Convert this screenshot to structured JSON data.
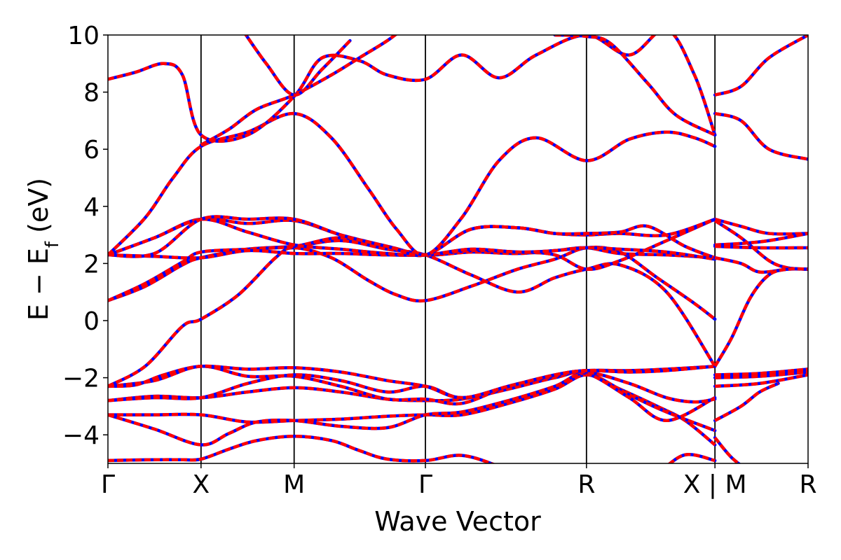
{
  "chart_data": {
    "type": "line",
    "title": "",
    "xlabel": "Wave Vector",
    "ylabel_main": "E − E",
    "ylabel_sub": "f",
    "ylabel_unit": " (eV)",
    "ylim": [
      -5,
      10
    ],
    "yticks": [
      -4,
      -2,
      0,
      2,
      4,
      6,
      8,
      10
    ],
    "ytick_labels": [
      "−4",
      "−2",
      "0",
      "2",
      "4",
      "6",
      "8",
      "10"
    ],
    "xlim": [
      0,
      7.52
    ],
    "kpath": [
      {
        "label": "Γ",
        "x": 0.0
      },
      {
        "label": "X",
        "x": 1.0
      },
      {
        "label": "M",
        "x": 2.0
      },
      {
        "label": "Γ",
        "x": 3.41
      },
      {
        "label": "R",
        "x": 5.14
      },
      {
        "label": "X | M",
        "x": 6.52
      },
      {
        "label": "R",
        "x": 7.52
      }
    ],
    "grid": false,
    "legend": "none",
    "colors": {
      "band_solid": "#0000ff",
      "band_dashed": "#ff0000",
      "vline": "#000000"
    },
    "bands": [
      {
        "x": [
          0.0,
          0.3,
          0.6,
          0.8,
          1.0,
          1.3,
          1.6,
          2.0,
          2.4,
          2.7,
          3.0,
          3.41,
          3.8,
          4.2,
          4.6,
          5.14,
          5.5,
          5.9,
          6.2,
          6.52
        ],
        "y": [
          -4.9,
          -4.88,
          -4.87,
          -4.87,
          -4.85,
          -4.5,
          -4.2,
          -4.05,
          -4.2,
          -4.55,
          -4.85,
          -4.9,
          -4.72,
          -5.1,
          -5.6,
          -6.2,
          -5.8,
          -5.3,
          -4.7,
          -4.9
        ]
      },
      {
        "x": [
          0.0,
          0.5,
          1.0,
          1.5,
          2.0,
          2.5,
          3.0,
          3.41,
          3.8,
          4.3,
          4.8,
          5.14,
          5.5,
          5.9,
          6.2,
          6.52
        ],
        "y": [
          -3.3,
          -3.3,
          -3.3,
          -3.55,
          -3.5,
          -3.45,
          -3.35,
          -3.3,
          -3.3,
          -2.9,
          -2.4,
          -1.9,
          -2.4,
          -3.0,
          -3.5,
          -4.35
        ]
      },
      {
        "x": [
          0.0,
          0.5,
          1.0,
          1.3,
          1.6,
          2.0,
          2.5,
          3.0,
          3.41,
          3.8,
          4.3,
          4.8,
          5.14,
          5.6,
          6.0,
          6.52
        ],
        "y": [
          -3.3,
          -3.8,
          -4.35,
          -3.95,
          -3.55,
          -3.5,
          -3.7,
          -3.75,
          -3.3,
          -3.2,
          -2.8,
          -2.3,
          -1.85,
          -2.6,
          -3.2,
          -3.85
        ]
      },
      {
        "x": [
          0.0,
          0.5,
          1.0,
          1.5,
          2.0,
          2.5,
          3.0,
          3.41,
          3.8,
          4.3,
          4.8,
          5.14,
          5.6,
          6.0,
          6.52
        ],
        "y": [
          -2.8,
          -2.65,
          -2.7,
          -2.5,
          -2.35,
          -2.5,
          -2.75,
          -2.8,
          -2.75,
          -2.4,
          -2.0,
          -1.85,
          -2.7,
          -3.5,
          -2.7
        ]
      },
      {
        "x": [
          0.0,
          0.5,
          1.0,
          1.5,
          2.0,
          2.5,
          3.0,
          3.41,
          3.8,
          4.3,
          4.8,
          5.14,
          5.6,
          6.0,
          6.3,
          6.52
        ],
        "y": [
          -2.3,
          -2.1,
          -1.6,
          -1.95,
          -1.95,
          -2.3,
          -2.75,
          -2.75,
          -2.9,
          -2.3,
          -1.95,
          -1.8,
          -2.2,
          -2.7,
          -2.85,
          -2.75
        ]
      },
      {
        "x": [
          0.0,
          0.5,
          1.0,
          1.5,
          2.0,
          2.5,
          3.0,
          3.41,
          3.8,
          4.3,
          4.8,
          5.14,
          5.6,
          6.0,
          6.52
        ],
        "y": [
          -2.8,
          -2.7,
          -2.7,
          -2.2,
          -1.9,
          -2.1,
          -2.5,
          -2.3,
          -2.7,
          -2.3,
          -1.9,
          -1.75,
          -1.75,
          -1.7,
          -1.6
        ]
      },
      {
        "x": [
          0.0,
          0.3,
          0.6,
          1.0,
          1.5,
          2.0,
          2.5,
          3.0,
          3.41,
          3.8,
          4.3,
          4.8,
          5.14,
          5.6,
          6.0,
          6.52
        ],
        "y": [
          -2.3,
          -2.25,
          -1.9,
          -1.6,
          -1.7,
          -1.65,
          -1.8,
          -2.1,
          -2.3,
          -2.7,
          -2.3,
          -1.9,
          -1.75,
          -1.8,
          -1.75,
          -1.6
        ]
      },
      {
        "x": [
          0.0,
          0.4,
          0.8,
          1.0,
          1.4,
          1.8,
          2.0,
          2.4,
          2.8,
          3.1,
          3.41,
          3.9,
          4.4,
          4.8,
          5.14,
          5.5,
          5.9,
          6.3,
          6.52
        ],
        "y": [
          -2.3,
          -1.6,
          -0.2,
          0.05,
          0.9,
          2.2,
          2.55,
          2.2,
          1.4,
          0.9,
          0.7,
          1.2,
          1.8,
          2.15,
          2.55,
          2.4,
          1.5,
          0.6,
          0.05
        ]
      },
      {
        "x": [
          0.0,
          0.4,
          0.8,
          1.0,
          1.5,
          2.0,
          2.5,
          3.0,
          3.41,
          3.9,
          4.4,
          4.8,
          5.14,
          5.5,
          6.0,
          6.52
        ],
        "y": [
          0.7,
          1.2,
          1.95,
          2.2,
          2.5,
          2.6,
          2.8,
          2.5,
          2.3,
          1.6,
          1.0,
          1.5,
          1.8,
          1.95,
          1.0,
          -1.6
        ]
      },
      {
        "x": [
          0.0,
          0.4,
          0.8,
          1.0,
          1.5,
          2.0,
          2.5,
          3.0,
          3.41,
          3.9,
          4.4,
          4.8,
          5.14,
          5.5,
          6.0,
          6.52
        ],
        "y": [
          0.7,
          1.3,
          2.05,
          2.4,
          2.5,
          2.6,
          2.9,
          2.6,
          2.3,
          2.4,
          2.35,
          2.45,
          2.55,
          2.35,
          2.3,
          2.2
        ]
      },
      {
        "x": [
          0.0,
          0.5,
          1.0,
          1.5,
          2.0,
          2.5,
          3.0,
          3.41,
          3.9,
          4.4,
          4.8,
          5.14,
          5.5,
          6.0,
          6.52
        ],
        "y": [
          2.3,
          2.25,
          2.2,
          2.45,
          2.35,
          2.35,
          2.3,
          2.3,
          2.45,
          2.4,
          2.3,
          1.8,
          2.1,
          2.8,
          3.55
        ]
      },
      {
        "x": [
          0.0,
          0.5,
          1.0,
          1.5,
          2.0,
          2.5,
          3.0,
          3.41,
          3.9,
          4.4,
          4.8,
          5.14,
          5.5,
          6.0,
          6.52
        ],
        "y": [
          2.3,
          2.9,
          3.55,
          3.1,
          2.65,
          2.5,
          2.35,
          2.3,
          2.5,
          2.4,
          2.45,
          2.55,
          2.5,
          2.4,
          2.15
        ]
      },
      {
        "x": [
          0.0,
          0.5,
          1.0,
          1.5,
          2.0,
          2.5,
          3.0,
          3.41,
          3.9,
          4.4,
          4.8,
          5.14,
          5.5,
          6.0,
          6.52
        ],
        "y": [
          2.3,
          2.9,
          3.55,
          3.4,
          3.5,
          3.0,
          2.6,
          2.3,
          3.2,
          3.25,
          3.05,
          3.0,
          3.05,
          3.0,
          3.55
        ]
      },
      {
        "x": [
          0.0,
          0.5,
          1.0,
          1.5,
          2.0,
          2.5,
          3.0,
          3.41,
          3.9,
          4.4,
          4.8,
          5.14,
          5.5,
          5.8,
          6.2,
          6.52
        ],
        "y": [
          2.3,
          2.35,
          3.55,
          3.55,
          3.55,
          3.0,
          2.6,
          2.3,
          3.2,
          3.25,
          3.05,
          3.05,
          3.1,
          3.3,
          2.6,
          2.2
        ]
      },
      {
        "x": [
          0.0,
          0.4,
          0.7,
          1.0,
          1.5,
          2.0,
          2.4,
          2.8,
          3.1,
          3.41,
          3.8,
          4.2,
          4.6,
          5.14,
          5.6,
          6.0,
          6.3,
          6.52
        ],
        "y": [
          2.3,
          3.6,
          5.0,
          6.1,
          6.6,
          7.25,
          6.4,
          4.6,
          3.2,
          2.3,
          3.6,
          5.6,
          6.4,
          5.6,
          6.35,
          6.6,
          6.4,
          6.1
        ]
      },
      {
        "x": [
          0.0,
          0.3,
          0.6,
          0.8,
          1.0,
          1.5,
          2.0,
          2.3,
          2.7,
          3.0,
          3.41,
          3.8,
          4.2,
          4.6,
          5.14,
          5.6,
          6.0,
          6.3,
          6.52
        ],
        "y": [
          8.45,
          8.7,
          9.0,
          8.6,
          6.5,
          6.5,
          7.85,
          9.2,
          9.1,
          8.6,
          8.45,
          9.3,
          8.5,
          9.3,
          10.0,
          9.3,
          10.2,
          8.6,
          6.5
        ]
      },
      {
        "x": [
          1.0,
          1.3,
          1.6,
          2.0,
          2.4,
          2.7,
          3.0,
          3.2
        ],
        "y": [
          6.15,
          6.7,
          7.4,
          7.9,
          8.6,
          9.2,
          9.8,
          10.3
        ]
      },
      {
        "x": [
          1.4,
          1.7,
          2.0,
          2.3,
          2.6
        ],
        "y": [
          10.4,
          9.0,
          7.9,
          8.8,
          9.8
        ]
      },
      {
        "x": [
          4.8,
          5.14,
          5.4,
          5.8,
          6.1,
          6.52
        ],
        "y": [
          10.0,
          9.95,
          9.7,
          8.3,
          7.2,
          6.5
        ]
      },
      {
        "x": [
          6.52,
          6.8,
          7.1,
          7.52
        ],
        "y": [
          7.9,
          8.2,
          9.2,
          10.0
        ]
      },
      {
        "x": [
          6.52,
          6.8,
          7.1,
          7.52
        ],
        "y": [
          7.25,
          7.0,
          6.0,
          5.65
        ]
      },
      {
        "x": [
          6.52,
          6.8,
          7.1,
          7.52
        ],
        "y": [
          3.55,
          3.3,
          3.05,
          3.05
        ]
      },
      {
        "x": [
          6.52,
          6.8,
          7.1,
          7.3,
          7.52
        ],
        "y": [
          3.5,
          2.9,
          2.1,
          1.85,
          1.8
        ]
      },
      {
        "x": [
          6.52,
          6.8,
          7.1,
          7.52
        ],
        "y": [
          2.65,
          2.7,
          2.8,
          3.05
        ]
      },
      {
        "x": [
          6.52,
          7.0,
          7.52
        ],
        "y": [
          2.6,
          2.55,
          2.55
        ]
      },
      {
        "x": [
          6.52,
          6.8,
          7.0,
          7.3,
          7.52
        ],
        "y": [
          2.2,
          2.0,
          1.7,
          1.8,
          1.8
        ]
      },
      {
        "x": [
          6.52,
          6.7,
          6.9,
          7.1,
          7.3,
          7.52
        ],
        "y": [
          -1.6,
          -0.6,
          0.8,
          1.6,
          1.8,
          1.8
        ]
      },
      {
        "x": [
          6.52,
          7.0,
          7.52
        ],
        "y": [
          -1.9,
          -1.85,
          -1.7
        ]
      },
      {
        "x": [
          6.52,
          7.0,
          7.52
        ],
        "y": [
          -2.0,
          -1.95,
          -1.8
        ]
      },
      {
        "x": [
          6.52,
          7.0,
          7.52
        ],
        "y": [
          -2.3,
          -2.2,
          -1.9
        ]
      },
      {
        "x": [
          6.52,
          6.8,
          7.0,
          7.2
        ],
        "y": [
          -3.5,
          -3.0,
          -2.5,
          -2.2
        ]
      },
      {
        "x": [
          6.52,
          6.7,
          6.9,
          7.0
        ],
        "y": [
          -4.1,
          -4.8,
          -5.3,
          -5.5
        ]
      }
    ]
  }
}
